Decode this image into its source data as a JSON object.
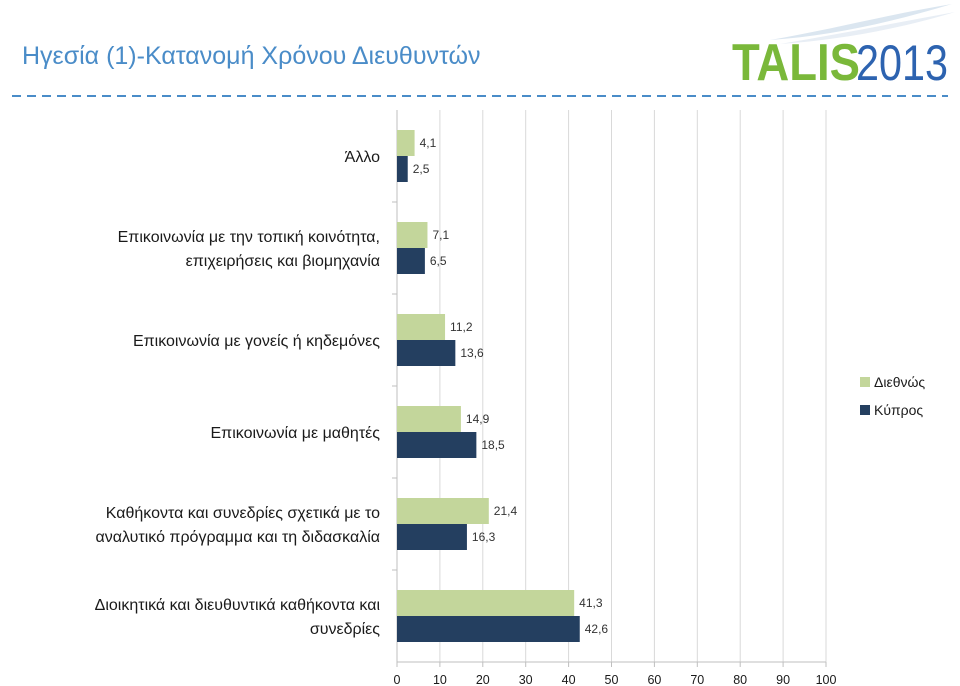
{
  "slide": {
    "title": "Ηγεσία (1)-Κατανομή Χρόνου Διευθυντών",
    "logo": {
      "main": "TALIS",
      "year": "2013"
    }
  },
  "colors": {
    "title": "#4a8cc8",
    "series_international": "#c3d69b",
    "series_cyprus": "#243f60",
    "grid": "#d9d9d9",
    "dash": "#4a8cc8"
  },
  "chart_data": {
    "type": "bar",
    "orientation": "horizontal",
    "categories": [
      [
        "Άλλο"
      ],
      [
        "Επικοινωνία με την τοπική κοινότητα,",
        "επιχειρήσεις και βιομηχανία"
      ],
      [
        "Επικοινωνία με γονείς ή κηδεμόνες"
      ],
      [
        "Επικοινωνία με μαθητές"
      ],
      [
        "Καθήκοντα και συνεδρίες σχετικά με το",
        "αναλυτικό πρόγραμμα και τη διδασκαλία"
      ],
      [
        "Διοικητικά και διευθυντικά καθήκοντα και",
        "συνεδρίες"
      ]
    ],
    "series": [
      {
        "name": "Διεθνώς",
        "values": [
          4.1,
          7.1,
          11.2,
          14.9,
          21.4,
          41.3
        ],
        "labels": [
          "4,1",
          "7,1",
          "11,2",
          "14,9",
          "21,4",
          "41,3"
        ]
      },
      {
        "name": "Κύπρος",
        "values": [
          2.5,
          6.5,
          13.6,
          18.5,
          16.3,
          42.6
        ],
        "labels": [
          "2,5",
          "6,5",
          "13,6",
          "18,5",
          "16,3",
          "42,6"
        ]
      }
    ],
    "xlim": [
      0,
      100
    ],
    "xticks": [
      "0",
      "10",
      "20",
      "30",
      "40",
      "50",
      "60",
      "70",
      "80",
      "90",
      "100"
    ],
    "grid": true,
    "legend": "right"
  }
}
